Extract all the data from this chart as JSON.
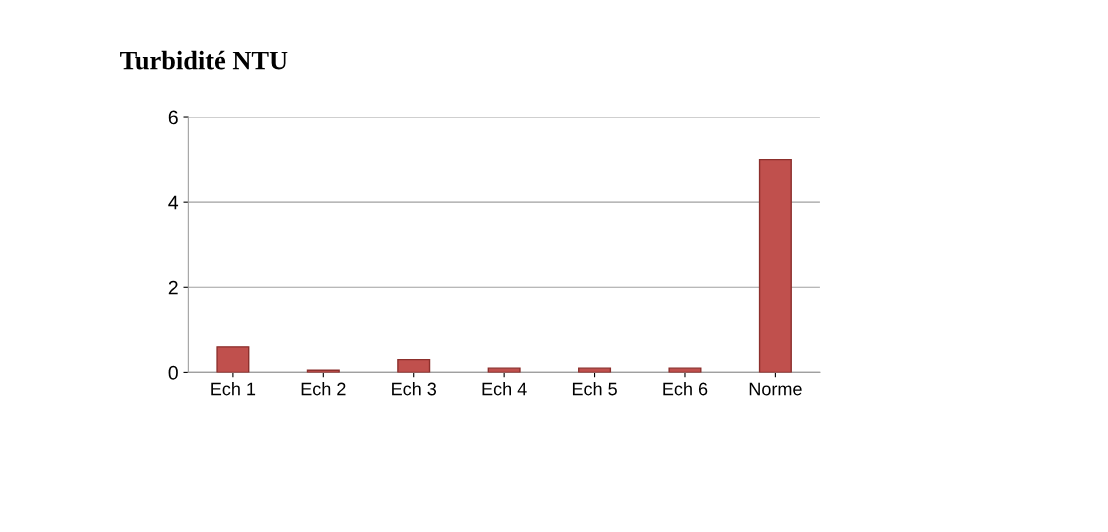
{
  "chart_data": {
    "type": "bar",
    "title": "Turbidité NTU",
    "categories": [
      "Ech 1",
      "Ech 2",
      "Ech 3",
      "Ech 4",
      "Ech 5",
      "Ech 6",
      "Norme"
    ],
    "values": [
      0.6,
      0.05,
      0.3,
      0.1,
      0.1,
      0.1,
      5
    ],
    "color": "#c0504d",
    "ylim": [
      0,
      6
    ],
    "yticks": [
      0,
      2,
      4,
      6
    ],
    "grid": "y",
    "legend": false
  }
}
